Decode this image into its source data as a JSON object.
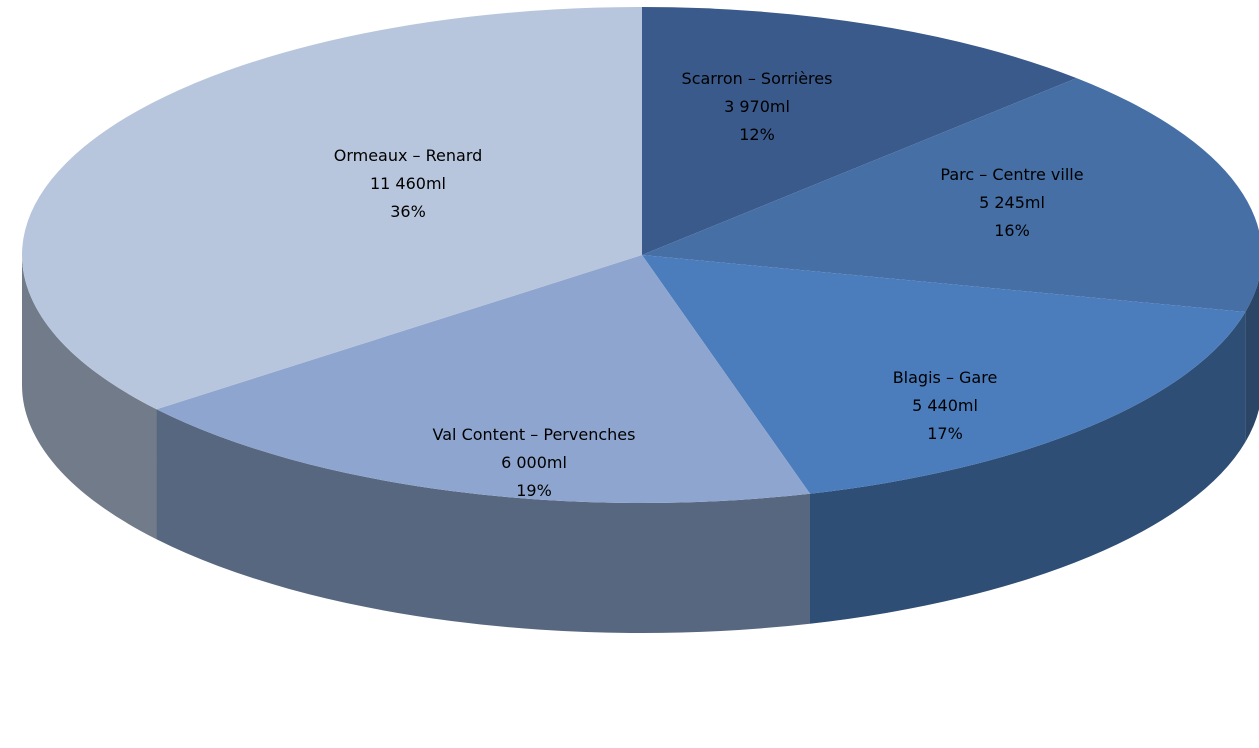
{
  "chart_data": {
    "type": "pie",
    "title": "",
    "slices": [
      {
        "name": "Scarron – Sorrières",
        "value": 3970,
        "value_label": "3 970ml",
        "percent_label": "12%",
        "color": "#3a5a8c"
      },
      {
        "name": "Parc – Centre ville",
        "value": 5245,
        "value_label": "5 245ml",
        "percent_label": "16%",
        "color": "#456fa5"
      },
      {
        "name": "Blagis – Gare",
        "value": 5440,
        "value_label": "5 440ml",
        "percent_label": "17%",
        "color": "#4b7dbd"
      },
      {
        "name": "Val Content – Pervenches",
        "value": 6000,
        "value_label": "6 000ml",
        "percent_label": "19%",
        "color": "#8ea6cf"
      },
      {
        "name": "Ormeaux – Renard",
        "value": 11460,
        "value_label": "11 460ml",
        "percent_label": "36%",
        "color": "#b8c6dd"
      }
    ]
  }
}
